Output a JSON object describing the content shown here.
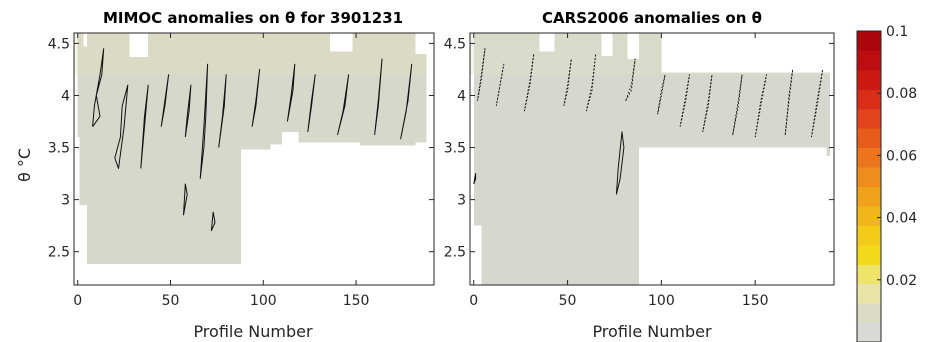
{
  "chart_data": [
    {
      "type": "heatmap",
      "title": "MIMOC anomalies on θ  for 3901231",
      "xlabel": "Profile Number",
      "ylabel": "θ °C",
      "xlim": [
        -2,
        192
      ],
      "ylim": [
        2.18,
        4.6
      ],
      "xticks": [
        "0",
        "50",
        "100",
        "150"
      ],
      "xtick_values": [
        0,
        50,
        100,
        150
      ],
      "yticks": [
        "2.5",
        "3",
        "3.5",
        "4",
        "4.5"
      ],
      "ytick_values": [
        2.5,
        3,
        3.5,
        4,
        4.5
      ],
      "coverage": [
        {
          "x": [
            0,
            1
          ],
          "y": [
            3.6,
            4.6
          ]
        },
        {
          "x": [
            1,
            3
          ],
          "y": [
            2.95,
            4.6
          ]
        },
        {
          "x": [
            3,
            5
          ],
          "y": [
            2.95,
            4.47
          ]
        },
        {
          "x": [
            5,
            88
          ],
          "y": [
            2.38,
            4.6
          ]
        },
        {
          "x": [
            88,
            104
          ],
          "y": [
            3.48,
            4.6
          ]
        },
        {
          "x": [
            104,
            110
          ],
          "y": [
            3.53,
            4.6
          ]
        },
        {
          "x": [
            110,
            119
          ],
          "y": [
            3.65,
            4.6
          ]
        },
        {
          "x": [
            119,
            152
          ],
          "y": [
            3.55,
            4.6
          ]
        },
        {
          "x": [
            152,
            182
          ],
          "y": [
            3.52,
            4.6
          ]
        },
        {
          "x": [
            182,
            188
          ],
          "y": [
            3.55,
            4.4
          ]
        }
      ],
      "gaps": [
        {
          "x": [
            28,
            38
          ],
          "y": [
            4.37,
            4.6
          ]
        },
        {
          "x": [
            136,
            148
          ],
          "y": [
            4.42,
            4.6
          ]
        }
      ],
      "contours": [
        {
          "x": [
            8,
            12,
            10,
            13,
            14,
            12,
            9,
            8
          ],
          "y": [
            3.7,
            3.8,
            4.0,
            4.2,
            4.45,
            4.2,
            3.9,
            3.7
          ]
        },
        {
          "x": [
            20,
            23,
            24,
            27,
            25,
            22,
            20
          ],
          "y": [
            3.4,
            3.6,
            3.9,
            4.1,
            3.7,
            3.3,
            3.4
          ]
        },
        {
          "x": [
            34,
            36,
            38,
            36,
            34
          ],
          "y": [
            3.3,
            3.7,
            4.1,
            3.8,
            3.3
          ]
        },
        {
          "x": [
            45,
            47,
            49,
            47,
            45
          ],
          "y": [
            3.7,
            3.9,
            4.2,
            3.95,
            3.7
          ]
        },
        {
          "x": [
            58,
            60,
            61,
            59,
            58
          ],
          "y": [
            3.6,
            3.85,
            4.1,
            3.8,
            3.6
          ]
        },
        {
          "x": [
            57,
            59,
            58,
            57
          ],
          "y": [
            2.85,
            3.05,
            3.15,
            2.85
          ]
        },
        {
          "x": [
            66,
            68,
            69,
            70,
            68,
            66
          ],
          "y": [
            3.2,
            3.5,
            3.8,
            4.3,
            3.7,
            3.2
          ]
        },
        {
          "x": [
            72,
            74,
            73,
            72
          ],
          "y": [
            2.7,
            2.78,
            2.88,
            2.7
          ]
        },
        {
          "x": [
            76,
            78,
            80,
            79,
            76
          ],
          "y": [
            3.5,
            3.8,
            4.2,
            3.9,
            3.5
          ]
        },
        {
          "x": [
            94,
            96,
            98,
            96,
            94
          ],
          "y": [
            3.7,
            3.95,
            4.25,
            3.9,
            3.7
          ]
        },
        {
          "x": [
            113,
            115,
            117,
            116,
            113
          ],
          "y": [
            3.75,
            4.0,
            4.3,
            4.05,
            3.75
          ]
        },
        {
          "x": [
            124,
            126,
            128,
            126,
            124
          ],
          "y": [
            3.65,
            3.9,
            4.2,
            3.95,
            3.65
          ]
        },
        {
          "x": [
            140,
            143,
            146,
            144,
            140
          ],
          "y": [
            3.62,
            3.85,
            4.2,
            3.9,
            3.62
          ]
        },
        {
          "x": [
            160,
            162,
            164,
            162,
            160
          ],
          "y": [
            3.62,
            3.9,
            4.35,
            3.95,
            3.62
          ]
        },
        {
          "x": [
            174,
            177,
            180,
            178,
            174
          ],
          "y": [
            3.58,
            3.85,
            4.3,
            3.95,
            3.58
          ]
        }
      ]
    },
    {
      "type": "heatmap",
      "title": "CARS2006 anomalies on θ",
      "xlabel": "Profile Number",
      "ylabel": "",
      "xlim": [
        -2,
        192
      ],
      "ylim": [
        2.18,
        4.6
      ],
      "xticks": [
        "0",
        "50",
        "100",
        "150"
      ],
      "xtick_values": [
        0,
        50,
        100,
        150
      ],
      "yticks": [
        "2.5",
        "3",
        "3.5",
        "4",
        "4.5"
      ],
      "ytick_values": [
        2.5,
        3,
        3.5,
        4,
        4.5
      ],
      "coverage": [
        {
          "x": [
            0,
            3
          ],
          "y": [
            2.75,
            4.6
          ]
        },
        {
          "x": [
            3,
            88
          ],
          "y": [
            2.18,
            4.6
          ]
        },
        {
          "x": [
            88,
            100
          ],
          "y": [
            3.5,
            4.6
          ]
        },
        {
          "x": [
            100,
            130
          ],
          "y": [
            3.5,
            4.22
          ]
        },
        {
          "x": [
            130,
            188
          ],
          "y": [
            3.5,
            4.22
          ]
        },
        {
          "x": [
            188,
            190
          ],
          "y": [
            3.42,
            4.22
          ]
        }
      ],
      "gaps": [
        {
          "x": [
            0,
            4
          ],
          "y": [
            2.18,
            2.75
          ]
        },
        {
          "x": [
            35,
            43
          ],
          "y": [
            4.42,
            4.6
          ]
        },
        {
          "x": [
            68,
            74
          ],
          "y": [
            4.38,
            4.6
          ]
        },
        {
          "x": [
            82,
            88
          ],
          "y": [
            4.35,
            4.6
          ]
        },
        {
          "x": [
            110,
            130
          ],
          "y": [
            4.42,
            4.6
          ]
        }
      ],
      "contours": [
        {
          "x": [
            76,
            78,
            80,
            79,
            77,
            76
          ],
          "y": [
            3.05,
            3.2,
            3.5,
            3.65,
            3.3,
            3.05
          ]
        },
        {
          "x": [
            0,
            1,
            1,
            0
          ],
          "y": [
            3.15,
            3.2,
            3.25,
            3.15
          ]
        }
      ],
      "dotted_contours": [
        {
          "x": [
            2,
            4,
            6,
            4,
            2
          ],
          "y": [
            3.95,
            4.15,
            4.45,
            4.2,
            3.95
          ]
        },
        {
          "x": [
            12,
            14,
            16,
            14,
            12
          ],
          "y": [
            3.9,
            4.1,
            4.3,
            4.1,
            3.9
          ]
        },
        {
          "x": [
            27,
            30,
            32,
            30,
            27
          ],
          "y": [
            3.85,
            4.1,
            4.4,
            4.15,
            3.85
          ]
        },
        {
          "x": [
            48,
            50,
            52,
            50,
            48
          ],
          "y": [
            3.9,
            4.05,
            4.35,
            4.1,
            3.9
          ]
        },
        {
          "x": [
            60,
            63,
            65,
            63,
            60
          ],
          "y": [
            3.85,
            4.05,
            4.4,
            4.1,
            3.85
          ]
        },
        {
          "x": [
            81,
            84,
            86,
            84,
            81
          ],
          "y": [
            3.95,
            4.05,
            4.35,
            4.1,
            3.95
          ]
        },
        {
          "x": [
            98,
            100,
            102,
            100,
            98
          ],
          "y": [
            3.82,
            4.0,
            4.2,
            4.05,
            3.82
          ]
        },
        {
          "x": [
            110,
            113,
            115,
            113,
            110
          ],
          "y": [
            3.7,
            3.95,
            4.2,
            4.0,
            3.7
          ]
        },
        {
          "x": [
            122,
            125,
            127,
            125,
            122
          ],
          "y": [
            3.65,
            3.9,
            4.2,
            3.95,
            3.65
          ]
        },
        {
          "x": [
            138,
            141,
            143,
            141,
            138
          ],
          "y": [
            3.62,
            3.9,
            4.2,
            3.95,
            3.62
          ]
        },
        {
          "x": [
            150,
            153,
            156,
            153,
            150
          ],
          "y": [
            3.6,
            3.9,
            4.2,
            3.95,
            3.6
          ]
        },
        {
          "x": [
            166,
            168,
            170,
            168,
            166
          ],
          "y": [
            3.62,
            3.95,
            4.25,
            4.0,
            3.62
          ]
        },
        {
          "x": [
            180,
            183,
            186,
            183,
            180
          ],
          "y": [
            3.6,
            3.9,
            4.25,
            3.95,
            3.6
          ]
        }
      ]
    }
  ],
  "colorbar": {
    "range": [
      0,
      0.1
    ],
    "ticks": [
      "0.1",
      "0.08",
      "0.06",
      "0.04",
      "0.02"
    ],
    "tick_values": [
      0.1,
      0.08,
      0.06,
      0.04,
      0.02
    ],
    "colors": [
      "#d9d9d6",
      "#dcdbc6",
      "#e7e4a5",
      "#efe46a",
      "#f3da1d",
      "#f3ca17",
      "#f2b618",
      "#f0a21a",
      "#ee8c1c",
      "#ec741c",
      "#e85c1b",
      "#e2431a",
      "#d92d18",
      "#cc1914",
      "#bd0d10",
      "#ab070c"
    ]
  }
}
